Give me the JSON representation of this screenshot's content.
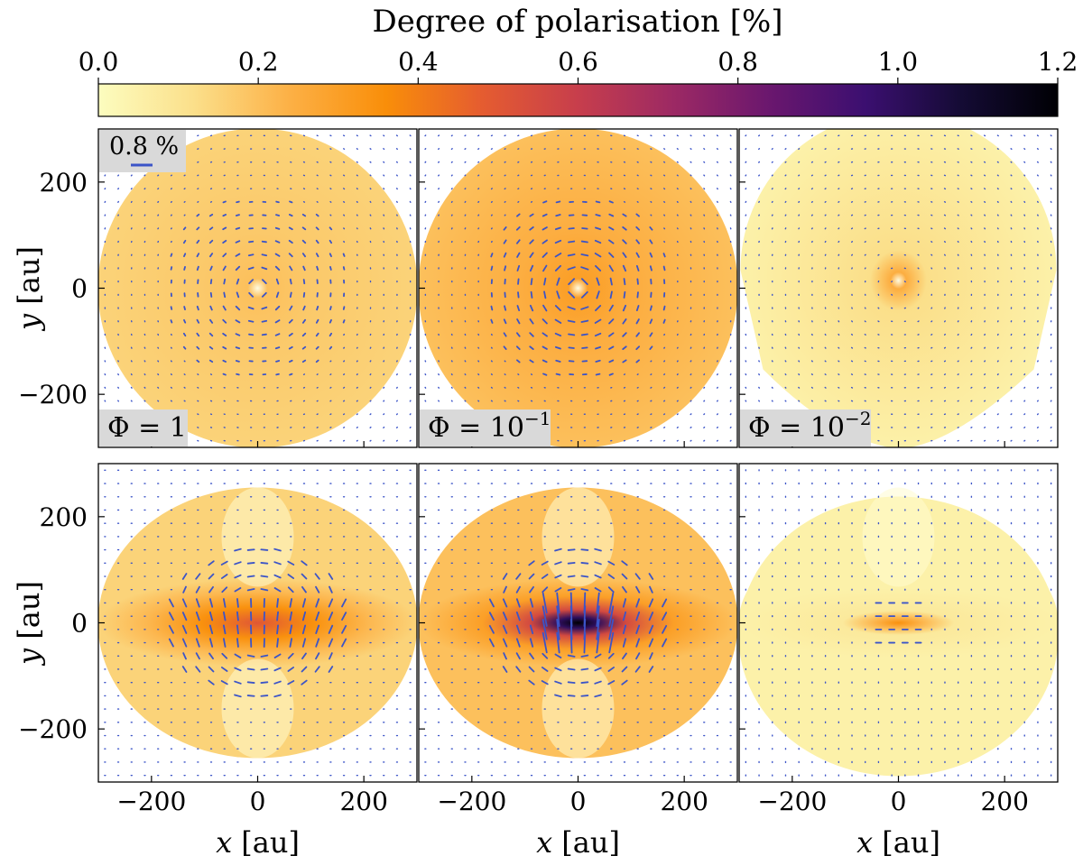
{
  "chart_data": {
    "type": "heatmap",
    "colorbar": {
      "title": "Degree of polarisation [%]",
      "range": [
        0.0,
        1.2
      ],
      "ticks": [
        "0.0",
        "0.2",
        "0.4",
        "0.6",
        "0.8",
        "1.0",
        "1.2"
      ],
      "colormap": "inferno_r",
      "stops": [
        "#fcfdbf",
        "#fbdf8a",
        "#fcb045",
        "#f98e09",
        "#e55c30",
        "#c73e4c",
        "#9c2964",
        "#6a176e",
        "#3b0f70",
        "#140b34",
        "#000004"
      ]
    },
    "scale_bar": {
      "label": "0.8 %",
      "value": 0.8
    },
    "axes": {
      "xlabel_var": "x",
      "ylabel_var": "y",
      "unit_label": "[au]",
      "xlim": [
        -300,
        300
      ],
      "ylim": [
        -300,
        300
      ],
      "xticks": [
        -200,
        0,
        200
      ],
      "yticks": [
        -200,
        0,
        200
      ],
      "tick_labels": [
        "−200",
        "0",
        "200"
      ]
    },
    "panel_labels": [
      {
        "prefix": "Φ = ",
        "base": "1",
        "exp": ""
      },
      {
        "prefix": "Φ = ",
        "base": "10",
        "exp": "−1"
      },
      {
        "prefix": "Φ = ",
        "base": "10",
        "exp": "−2"
      }
    ],
    "panels": [
      {
        "row": 0,
        "col": 0,
        "phi": 1,
        "view": "face-on",
        "background_level": 0.15,
        "peak_level": 0.2,
        "pattern": "azimuthal"
      },
      {
        "row": 0,
        "col": 1,
        "phi": 0.1,
        "view": "face-on",
        "background_level": 0.2,
        "peak_level": 0.3,
        "pattern": "azimuthal"
      },
      {
        "row": 0,
        "col": 2,
        "phi": 0.01,
        "view": "face-on",
        "background_level": 0.05,
        "peak_level": 0.25,
        "pattern": "azimuthal"
      },
      {
        "row": 1,
        "col": 0,
        "phi": 1,
        "view": "edge-on",
        "background_level": 0.15,
        "peak_level": 0.5,
        "pattern": "vertical-midplane"
      },
      {
        "row": 1,
        "col": 1,
        "phi": 0.1,
        "view": "edge-on",
        "background_level": 0.2,
        "peak_level": 1.2,
        "pattern": "vertical-midplane"
      },
      {
        "row": 1,
        "col": 2,
        "phi": 0.01,
        "view": "edge-on",
        "background_level": 0.05,
        "peak_level": 0.35,
        "pattern": "vertical-midplane"
      }
    ]
  }
}
